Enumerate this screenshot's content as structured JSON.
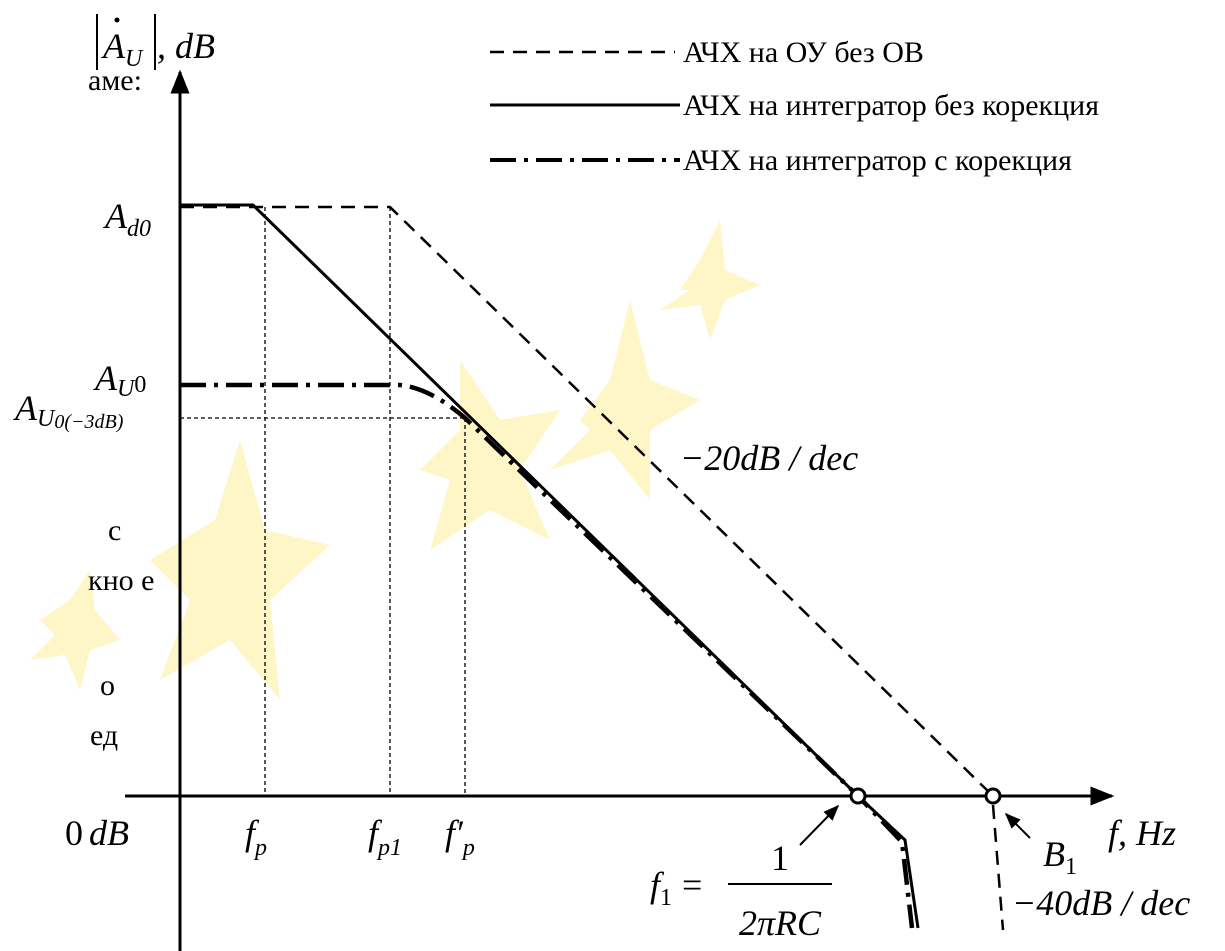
{
  "background_text": [
    "аме:",
    "с",
    "кно е",
    "о",
    "ед"
  ],
  "legend": [
    "АЧХ на ОУ без ОВ",
    "АЧХ на интегратор без корекция",
    "АЧХ на интегратор с корекция"
  ],
  "y_axis_label": {
    "symbol": "A",
    "sub": "U",
    "unit": ", dB"
  },
  "x_axis_label": {
    "symbol": "f",
    "unit": ", Hz"
  },
  "levels": {
    "ad0": {
      "symbol": "A",
      "sub": "d0"
    },
    "au0": {
      "symbol": "A",
      "sub": "U",
      "sub2": "0"
    },
    "au0_3db": {
      "symbol": "A",
      "sub": "U",
      "sub2": "0(−3dB)"
    },
    "zero": {
      "number": "0",
      "unit": "dB"
    }
  },
  "frequencies": {
    "fp": {
      "symbol": "f",
      "sub": "p"
    },
    "fp1": {
      "symbol": "f",
      "sub": "p1"
    },
    "fp_prime": {
      "symbol": "f′",
      "sub": "p"
    },
    "f1": {
      "symbol": "f",
      "sub": "1",
      "eq": "=",
      "num": "1",
      "den": "2πRC"
    },
    "b1": {
      "symbol": "B",
      "sub": "1"
    }
  },
  "slopes": [
    "−20dB / dec",
    "−40dB / dec"
  ]
}
